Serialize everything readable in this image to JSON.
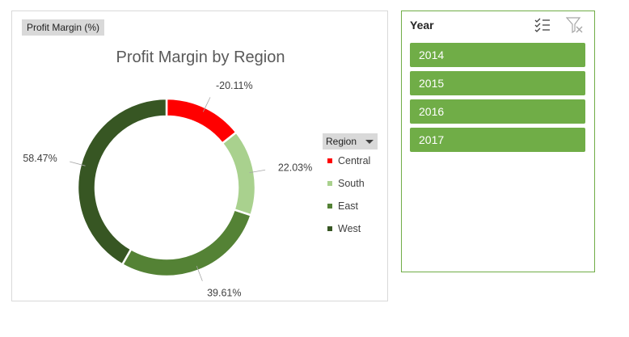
{
  "field_button": {
    "label": "Profit Margin (%)"
  },
  "chart_data": {
    "type": "pie",
    "title": "Profit Margin by Region",
    "categories": [
      "Central",
      "South",
      "East",
      "West"
    ],
    "values": [
      -20.11,
      22.03,
      39.61,
      58.47
    ],
    "data_labels": [
      "-20.11%",
      "22.03%",
      "39.61%",
      "58.47%"
    ],
    "colors": [
      "#ff0000",
      "#a9d18e",
      "#548235",
      "#375623"
    ],
    "legend_position": "right"
  },
  "legend": {
    "header": "Region",
    "items": [
      {
        "label": "Central",
        "color": "#ff0000"
      },
      {
        "label": "South",
        "color": "#a9d18e"
      },
      {
        "label": "East",
        "color": "#548235"
      },
      {
        "label": "West",
        "color": "#375623"
      }
    ]
  },
  "slicer": {
    "title": "Year",
    "accent": "#70ad47",
    "items": [
      {
        "label": "2014"
      },
      {
        "label": "2015"
      },
      {
        "label": "2016"
      },
      {
        "label": "2017"
      }
    ]
  },
  "icons": {
    "multiselect": "multi-select-icon",
    "clear_filter": "clear-filter-icon",
    "dropdown": "dropdown-arrow-icon"
  }
}
